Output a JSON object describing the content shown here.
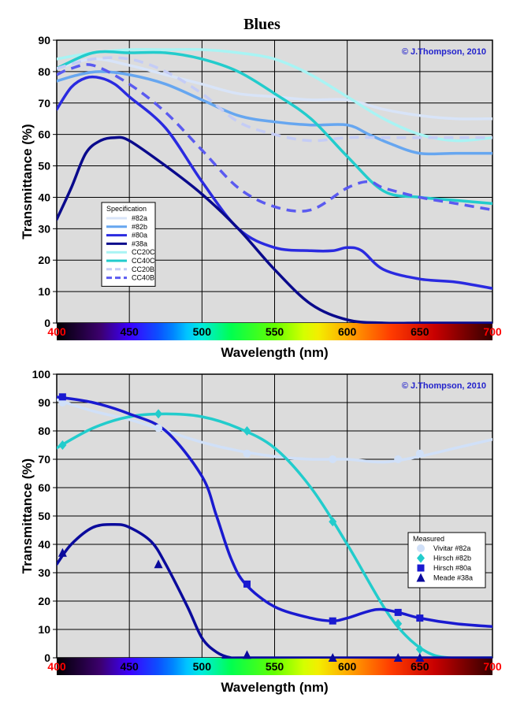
{
  "title": "Blues",
  "chart_data": [
    {
      "type": "line",
      "xlabel": "Wavelength (nm)",
      "ylabel": "Transmittance (%)",
      "xlim": [
        400,
        700
      ],
      "ylim": [
        0,
        90
      ],
      "xticks": [
        400,
        450,
        500,
        550,
        600,
        650,
        700
      ],
      "yticks": [
        0,
        10,
        20,
        30,
        40,
        50,
        60,
        70,
        80,
        90
      ],
      "grid": true,
      "copyright": "© J.Thompson, 2010",
      "legend_title": "Specification",
      "legend_position": "lower-left",
      "series": [
        {
          "name": "#82a",
          "color": "#d8e4f8",
          "dash": false,
          "x": [
            400,
            425,
            450,
            475,
            500,
            525,
            550,
            575,
            600,
            625,
            650,
            675,
            700
          ],
          "y": [
            81,
            84,
            82,
            79,
            76,
            73,
            72,
            71,
            71,
            68,
            66,
            65,
            65
          ]
        },
        {
          "name": "#82b",
          "color": "#66a6f0",
          "dash": false,
          "x": [
            400,
            415,
            430,
            450,
            475,
            500,
            525,
            550,
            575,
            600,
            615,
            630,
            650,
            675,
            700
          ],
          "y": [
            77,
            79,
            80,
            79,
            76,
            71,
            66,
            64,
            63,
            63,
            60,
            57,
            54,
            54,
            54
          ]
        },
        {
          "name": "#80a",
          "color": "#2a2ae0",
          "dash": false,
          "x": [
            400,
            410,
            420,
            430,
            440,
            450,
            475,
            500,
            525,
            550,
            575,
            590,
            600,
            610,
            625,
            650,
            675,
            700
          ],
          "y": [
            68,
            75,
            78,
            78,
            76,
            72,
            62,
            45,
            30,
            24,
            23,
            23,
            24,
            23,
            17,
            14,
            13,
            11
          ]
        },
        {
          "name": "#38a",
          "color": "#0a0a8c",
          "dash": false,
          "x": [
            400,
            410,
            420,
            430,
            440,
            450,
            475,
            500,
            525,
            550,
            575,
            600,
            625,
            650,
            675,
            700
          ],
          "y": [
            33,
            43,
            54,
            58,
            59,
            58,
            50,
            41,
            30,
            17,
            6,
            1,
            0,
            0,
            0,
            0
          ]
        },
        {
          "name": "CC20C",
          "color": "#a8f4f4",
          "dash": false,
          "x": [
            400,
            425,
            450,
            475,
            500,
            525,
            550,
            575,
            600,
            625,
            650,
            675,
            700
          ],
          "y": [
            84,
            86,
            87,
            87,
            87,
            86,
            84,
            79,
            72,
            65,
            60,
            58,
            59
          ]
        },
        {
          "name": "CC40C",
          "color": "#22cccc",
          "dash": false,
          "x": [
            400,
            425,
            450,
            475,
            500,
            525,
            550,
            575,
            600,
            625,
            650,
            675,
            700
          ],
          "y": [
            81,
            86,
            86,
            86,
            84,
            80,
            73,
            65,
            53,
            42,
            40,
            39,
            38
          ]
        },
        {
          "name": "CC20B",
          "color": "#c4ccf6",
          "dash": true,
          "x": [
            400,
            425,
            450,
            475,
            500,
            525,
            550,
            575,
            600,
            625,
            650,
            675,
            700
          ],
          "y": [
            81,
            84,
            84,
            80,
            73,
            64,
            60,
            58,
            59,
            59,
            59,
            59,
            59
          ]
        },
        {
          "name": "CC40B",
          "color": "#5a5af0",
          "dash": true,
          "x": [
            400,
            410,
            425,
            450,
            475,
            500,
            525,
            550,
            575,
            600,
            615,
            625,
            650,
            675,
            700
          ],
          "y": [
            79,
            81,
            82,
            76,
            67,
            55,
            43,
            37,
            36,
            43,
            45,
            43,
            40,
            38,
            36
          ]
        }
      ]
    },
    {
      "type": "line",
      "xlabel": "Wavelength (nm)",
      "ylabel": "Transmittance (%)",
      "xlim": [
        400,
        700
      ],
      "ylim": [
        0,
        100
      ],
      "xticks": [
        400,
        450,
        500,
        550,
        600,
        650,
        700
      ],
      "yticks": [
        0,
        10,
        20,
        30,
        40,
        50,
        60,
        70,
        80,
        90,
        100
      ],
      "grid": true,
      "copyright": "© J.Thompson, 2010",
      "legend_title": "Measured",
      "legend_position": "right",
      "series": [
        {
          "name": "Vivitar #82a",
          "color": "#d0e0f8",
          "marker": "circle",
          "x": [
            400,
            425,
            450,
            475,
            500,
            525,
            550,
            575,
            600,
            625,
            650,
            675,
            700
          ],
          "y": [
            91,
            87,
            84,
            80,
            76,
            73,
            71,
            70,
            70,
            69,
            71,
            74,
            77
          ],
          "points_x": [
            404,
            470,
            531,
            590,
            635,
            650
          ],
          "points_y": [
            90,
            81,
            72,
            70,
            70,
            72
          ]
        },
        {
          "name": "Hirsch #82b",
          "color": "#22cccc",
          "marker": "diamond",
          "x": [
            400,
            425,
            450,
            475,
            500,
            525,
            550,
            575,
            600,
            625,
            640,
            655,
            670,
            700
          ],
          "y": [
            74,
            81,
            85,
            86,
            85,
            81,
            74,
            60,
            40,
            18,
            8,
            2,
            0,
            0
          ],
          "points_x": [
            404,
            470,
            531,
            590,
            635,
            650
          ],
          "points_y": [
            75,
            86,
            80,
            48,
            12,
            3
          ]
        },
        {
          "name": "Hirsch #80a",
          "color": "#1a1ad0",
          "marker": "square",
          "x": [
            400,
            425,
            450,
            475,
            500,
            510,
            520,
            530,
            550,
            575,
            590,
            600,
            620,
            635,
            650,
            675,
            700
          ],
          "y": [
            92,
            90,
            86,
            80,
            64,
            50,
            35,
            26,
            18,
            14,
            13,
            14,
            17,
            16,
            14,
            12,
            11
          ],
          "points_x": [
            404,
            531,
            590,
            635,
            650
          ],
          "points_y": [
            92,
            26,
            13,
            16,
            14
          ]
        },
        {
          "name": "Meade #38a",
          "color": "#0a0a9c",
          "marker": "triangle",
          "x": [
            400,
            410,
            425,
            440,
            450,
            465,
            475,
            490,
            500,
            510,
            520,
            530,
            700
          ],
          "y": [
            33,
            40,
            46,
            47,
            46,
            41,
            33,
            18,
            7,
            2,
            0,
            0,
            0
          ],
          "points_x": [
            404,
            470,
            531,
            590,
            635,
            650
          ],
          "points_y": [
            37,
            33,
            1,
            0,
            0,
            0
          ]
        }
      ]
    }
  ]
}
